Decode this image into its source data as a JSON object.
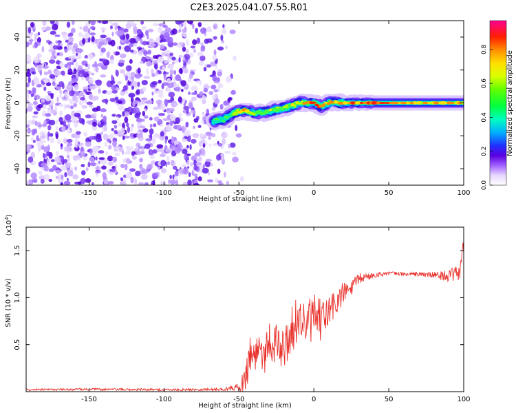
{
  "title": "C2E3.2025.041.07.55.R01",
  "chart_data": [
    {
      "type": "heatmap",
      "xlabel": "Height of straight line (km)",
      "ylabel": "Frequency (Hz)",
      "xlim": [
        -192,
        100
      ],
      "ylim": [
        -50,
        50
      ],
      "xticks": [
        -150,
        -100,
        -50,
        0,
        50,
        100
      ],
      "yticks": [
        -40,
        -20,
        0,
        20,
        40
      ],
      "colorbar": {
        "label": "Normalized spectral amplitude",
        "range": [
          0,
          0.97
        ],
        "ticks": [
          "0.0",
          "0.2",
          "0.4",
          "0.6",
          "0.8"
        ],
        "colormap": [
          "#ffffff",
          "#e8d8ff",
          "#9b59ff",
          "#5a00e0",
          "#2020ff",
          "#00c8ff",
          "#00ff80",
          "#40ff00",
          "#d0ff00",
          "#ffff00",
          "#ff9000",
          "#ff0000",
          "#ff00a0"
        ]
      },
      "noise_region_x": [
        -192,
        -55
      ],
      "signal_ridge": {
        "x": [
          -67,
          -60,
          -55,
          -50,
          -45,
          -40,
          -35,
          -30,
          -25,
          -20,
          -15,
          -10,
          -5,
          0,
          5,
          10,
          20,
          40,
          60,
          80,
          100
        ],
        "frequency": [
          -11,
          -10,
          -7,
          -5,
          -5,
          -6,
          -6,
          -5,
          -4,
          -3,
          -2,
          0,
          0,
          0,
          -2,
          0,
          0,
          0,
          0,
          0,
          0
        ],
        "peak_amplitude": [
          0.3,
          0.35,
          0.5,
          0.6,
          0.7,
          0.55,
          0.5,
          0.6,
          0.55,
          0.5,
          0.55,
          0.6,
          0.75,
          0.9,
          0.9,
          0.75,
          0.8,
          0.85,
          0.78,
          0.72,
          0.7
        ]
      }
    },
    {
      "type": "line",
      "xlabel": "Height of straight line (km)",
      "ylabel": "SNR (10 * v/v)",
      "y_multiplier": "(x10",
      "y_multiplier_exp": "4",
      "xlim": [
        -192,
        100
      ],
      "ylim": [
        0,
        17500
      ],
      "xticks": [
        -150,
        -100,
        -50,
        0,
        50,
        100
      ],
      "yticks": [
        5000,
        10000,
        15000
      ],
      "ytick_labels": [
        "0.5",
        "1.0",
        "1.5"
      ],
      "color": "#e8302a",
      "series": [
        {
          "x": [
            -192,
            -150,
            -100,
            -60,
            -50,
            -46,
            -44,
            -42,
            -40,
            -37,
            -33,
            -30,
            -25,
            -20,
            -15,
            -10,
            -5,
            0,
            5,
            10,
            15,
            20,
            25,
            30,
            40,
            50,
            60,
            70,
            80,
            90,
            95,
            98,
            100
          ],
          "y": [
            200,
            250,
            200,
            250,
            500,
            1200,
            3000,
            4500,
            3500,
            5000,
            4000,
            5500,
            5000,
            4500,
            6500,
            8000,
            7000,
            8000,
            7500,
            8500,
            9500,
            10500,
            11000,
            12000,
            12400,
            12600,
            12500,
            12500,
            12400,
            12300,
            12500,
            13000,
            16000
          ],
          "noise_amplitude": [
            100,
            120,
            120,
            150,
            400,
            1500,
            2000,
            2200,
            2200,
            2200,
            2200,
            2200,
            2200,
            2300,
            2400,
            2600,
            2500,
            2400,
            2300,
            2000,
            1600,
            1200,
            900,
            600,
            300,
            200,
            200,
            250,
            350,
            600,
            900,
            1100,
            1200
          ]
        }
      ]
    }
  ]
}
